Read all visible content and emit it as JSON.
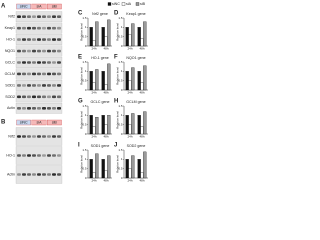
{
  "figure": {
    "panel_a": {
      "letter": "A",
      "header_labels": [
        "siNC",
        "siA",
        "siB"
      ],
      "rows": [
        "Nrf2",
        "Keap1",
        "HO-1",
        "NQO1",
        "GCLC",
        "GCLM",
        "SOD1",
        "SOD2",
        "Actin"
      ]
    },
    "panel_b": {
      "letter": "B",
      "header_labels": [
        "siNC",
        "siA",
        "siB"
      ],
      "rows": [
        "Nrf2",
        "HO-1",
        "Actin"
      ]
    },
    "legend": [
      {
        "name": "siNC",
        "color": "#111111"
      },
      {
        "name": "siA",
        "color": "#ffffff"
      },
      {
        "name": "siB",
        "color": "#9a9a9a"
      }
    ],
    "charts": [
      {
        "letter": "C",
        "title": "Nrf2 gene",
        "y_label": "Relative level",
        "categories": [
          "24h",
          "48h"
        ],
        "values": [
          [
            1,
            1
          ],
          [
            0.3,
            0.5
          ],
          [
            1.3,
            1.4
          ]
        ],
        "ylim": [
          0,
          1.5
        ],
        "yticks": [
          0,
          0.5,
          1,
          1.5
        ]
      },
      {
        "letter": "D",
        "title": "Keap1 gene",
        "y_label": "Relative level",
        "categories": [
          "24h",
          "48h"
        ],
        "values": [
          [
            1,
            1
          ],
          [
            0.6,
            0.4
          ],
          [
            1.2,
            1.3
          ]
        ],
        "ylim": [
          0,
          1.5
        ],
        "yticks": [
          0,
          0.5,
          1,
          1.5
        ]
      },
      {
        "letter": "E",
        "title": "HO-1 gene",
        "y_label": "Relative level",
        "categories": [
          "24h",
          "48h"
        ],
        "values": [
          [
            1,
            1
          ],
          [
            0.4,
            0.3
          ],
          [
            1.1,
            1.4
          ]
        ],
        "ylim": [
          0,
          1.5
        ],
        "yticks": [
          0,
          0.5,
          1,
          1.5
        ]
      },
      {
        "letter": "F",
        "title": "NQO1 gene",
        "y_label": "Relative level",
        "categories": [
          "24h",
          "48h"
        ],
        "values": [
          [
            1,
            1
          ],
          [
            0.5,
            0.4
          ],
          [
            1.2,
            1.3
          ]
        ],
        "ylim": [
          0,
          1.5
        ],
        "yticks": [
          0,
          0.5,
          1,
          1.5
        ]
      },
      {
        "letter": "G",
        "title": "GCLC gene",
        "y_label": "Relative level",
        "categories": [
          "24h",
          "48h"
        ],
        "values": [
          [
            1,
            1
          ],
          [
            0.4,
            0.5
          ],
          [
            0.9,
            1
          ]
        ],
        "ylim": [
          0,
          1.5
        ],
        "yticks": [
          0,
          0.5,
          1,
          1.5
        ]
      },
      {
        "letter": "H",
        "title": "GCLM gene",
        "y_label": "Relative level",
        "categories": [
          "24h",
          "48h"
        ],
        "values": [
          [
            1,
            1
          ],
          [
            0.5,
            0.4
          ],
          [
            1.1,
            1.2
          ]
        ],
        "ylim": [
          0,
          1.5
        ],
        "yticks": [
          0,
          0.5,
          1,
          1.5
        ]
      },
      {
        "letter": "I",
        "title": "SOD1 gene",
        "y_label": "Relative level",
        "categories": [
          "24h",
          "48h"
        ],
        "values": [
          [
            1,
            1
          ],
          [
            0.3,
            0.4
          ],
          [
            1.3,
            1.2
          ]
        ],
        "ylim": [
          0,
          1.5
        ],
        "yticks": [
          0,
          0.5,
          1,
          1.5
        ]
      },
      {
        "letter": "J",
        "title": "SOD2 gene",
        "y_label": "Relative level",
        "categories": [
          "24h",
          "48h"
        ],
        "values": [
          [
            1,
            1
          ],
          [
            0.5,
            0.3
          ],
          [
            1.2,
            1.4
          ]
        ],
        "ylim": [
          0,
          1.5
        ],
        "yticks": [
          0,
          0.5,
          1,
          1.5
        ]
      }
    ]
  }
}
